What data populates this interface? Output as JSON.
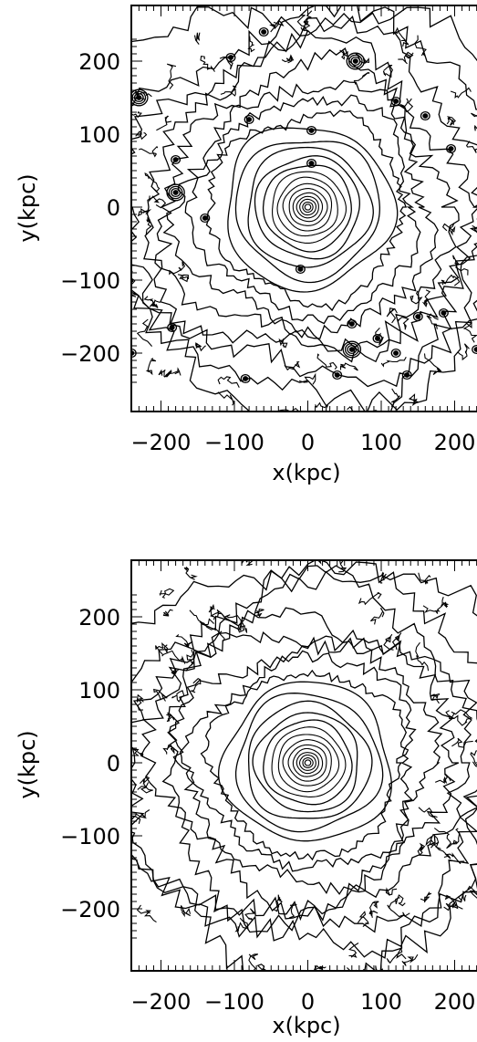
{
  "chart_data": [
    {
      "type": "contour",
      "xlabel": "x(kpc)",
      "ylabel": "y(kpc)",
      "xlim": [
        -280,
        280
      ],
      "ylim": [
        -280,
        280
      ],
      "xticks": [
        -200,
        -100,
        0,
        100,
        200
      ],
      "yticks": [
        -200,
        -100,
        0,
        100,
        200
      ],
      "xtick_labels": [
        "−200",
        "−100",
        "0",
        "100",
        "200"
      ],
      "ytick_labels": [
        "−200",
        "−100",
        "0",
        "100",
        "200"
      ],
      "center": [
        0,
        0
      ],
      "contour_radii": [
        4,
        7,
        11,
        15,
        20,
        26,
        33,
        41,
        50,
        60,
        71,
        84,
        98,
        114,
        131,
        150,
        170,
        192,
        215,
        240,
        266,
        292
      ],
      "axis_ratio": 0.88,
      "substructure_clumps": [
        [
          -185,
          -165
        ],
        [
          -180,
          65
        ],
        [
          -180,
          20
        ],
        [
          -140,
          -15
        ],
        [
          -80,
          120
        ],
        [
          -105,
          205
        ],
        [
          -85,
          -235
        ],
        [
          -60,
          240
        ],
        [
          5,
          105
        ],
        [
          5,
          60
        ],
        [
          -10,
          -85
        ],
        [
          65,
          200
        ],
        [
          120,
          145
        ],
        [
          160,
          125
        ],
        [
          195,
          80
        ],
        [
          245,
          70
        ],
        [
          240,
          10
        ],
        [
          60,
          -160
        ],
        [
          95,
          -180
        ],
        [
          60,
          -195
        ],
        [
          120,
          -200
        ],
        [
          150,
          -150
        ],
        [
          185,
          -145
        ],
        [
          230,
          -195
        ],
        [
          40,
          -230
        ],
        [
          -230,
          150
        ],
        [
          -240,
          -200
        ],
        [
          135,
          -230
        ]
      ],
      "has_substructure": true
    },
    {
      "type": "contour",
      "xlabel": "x(kpc)",
      "ylabel": "y(kpc)",
      "xlim": [
        -280,
        280
      ],
      "ylim": [
        -280,
        280
      ],
      "xticks": [
        -200,
        -100,
        0,
        100,
        200
      ],
      "yticks": [
        -200,
        -100,
        0,
        100,
        200
      ],
      "xtick_labels": [
        "−200",
        "−100",
        "0",
        "100",
        "200"
      ],
      "ytick_labels": [
        "−200",
        "−100",
        "0",
        "100",
        "200"
      ],
      "center": [
        0,
        0
      ],
      "contour_radii": [
        4,
        7,
        11,
        15,
        20,
        26,
        33,
        41,
        50,
        60,
        71,
        84,
        98,
        114,
        131,
        150,
        170,
        192,
        215,
        240,
        266,
        292
      ],
      "axis_ratio": 0.86,
      "substructure_clumps": [],
      "has_substructure": false
    }
  ]
}
